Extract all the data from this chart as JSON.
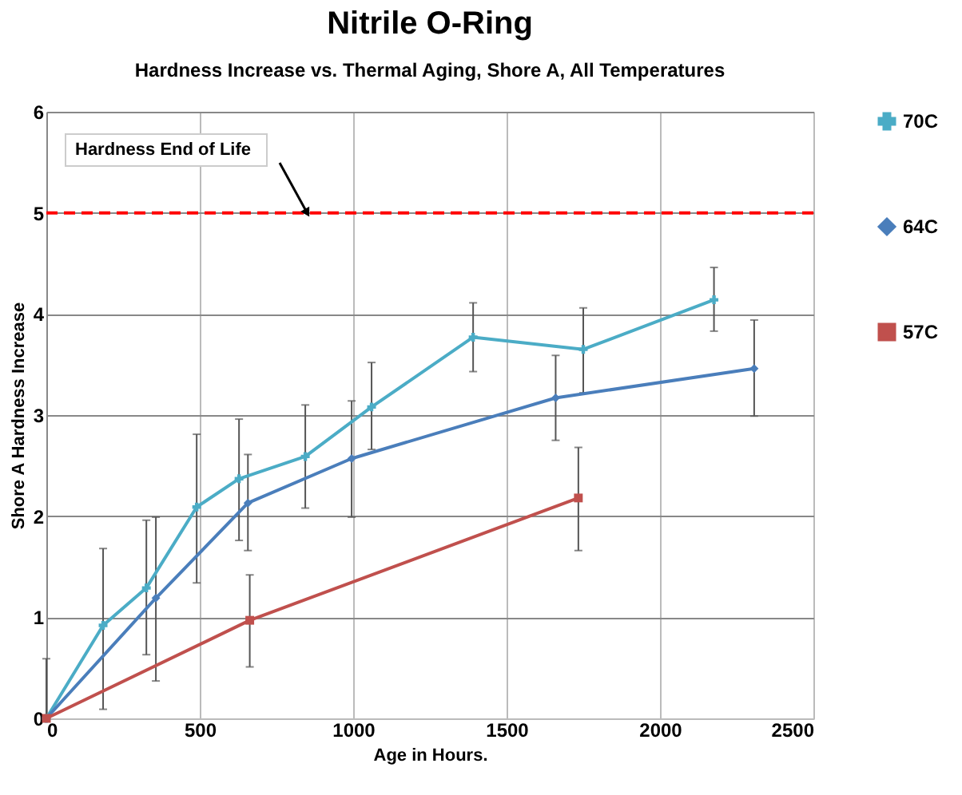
{
  "chart_data": {
    "type": "line",
    "title": "Nitrile O-Ring",
    "subtitle": "Hardness Increase vs. Thermal Aging, Shore A, All Temperatures",
    "xlabel": "Age in Hours.",
    "ylabel": "Shore A Hardness  Increase",
    "series": [
      {
        "name": "70C",
        "color": "#4bacc6",
        "marker": "cross",
        "x": [
          0,
          185,
          326,
          490,
          628,
          844,
          1060,
          1391,
          1750,
          2176
        ],
        "values": [
          0,
          0.92,
          1.29,
          2.09,
          2.37,
          2.59,
          3.08,
          3.77,
          3.65,
          4.14
        ],
        "errors": [
          [
            0,
            0.59
          ],
          [
            0.09,
            1.68
          ],
          [
            0.63,
            1.96
          ],
          [
            1.34,
            2.81
          ],
          [
            1.76,
            2.96
          ],
          [
            2.08,
            3.1
          ],
          [
            2.66,
            3.52
          ],
          [
            3.43,
            4.11
          ],
          [
            3.22,
            4.06
          ],
          [
            3.83,
            4.46
          ]
        ]
      },
      {
        "name": "64C",
        "color": "#4a7ebb",
        "marker": "diamond",
        "x": [
          0,
          357,
          657,
          995,
          1660,
          2307
        ],
        "values": [
          0,
          1.19,
          2.13,
          2.57,
          3.17,
          3.46
        ],
        "errors": [
          null,
          [
            0.37,
            1.99
          ],
          [
            1.66,
            2.61
          ],
          [
            1.99,
            3.14
          ],
          [
            2.75,
            3.59
          ],
          [
            2.99,
            3.94
          ]
        ]
      },
      {
        "name": "57C",
        "color": "#c0504d",
        "marker": "square",
        "x": [
          0,
          663,
          1734
        ],
        "values": [
          0,
          0.97,
          2.18
        ],
        "errors": [
          null,
          [
            0.51,
            1.42
          ],
          [
            1.66,
            2.68
          ]
        ]
      }
    ],
    "ref_lines": [
      {
        "axis": "y",
        "value": 5,
        "color": "#ff0000",
        "line_style": "dashed"
      }
    ],
    "annotations": [
      "Hardness End of Life"
    ],
    "xlim": [
      0,
      2500
    ],
    "xticks": [
      0,
      500,
      1000,
      1500,
      2000,
      2500
    ],
    "ylim": [
      0,
      6
    ],
    "yticks": [
      0,
      1,
      2,
      3,
      4,
      5,
      6
    ],
    "grid": true,
    "legend": "right"
  }
}
